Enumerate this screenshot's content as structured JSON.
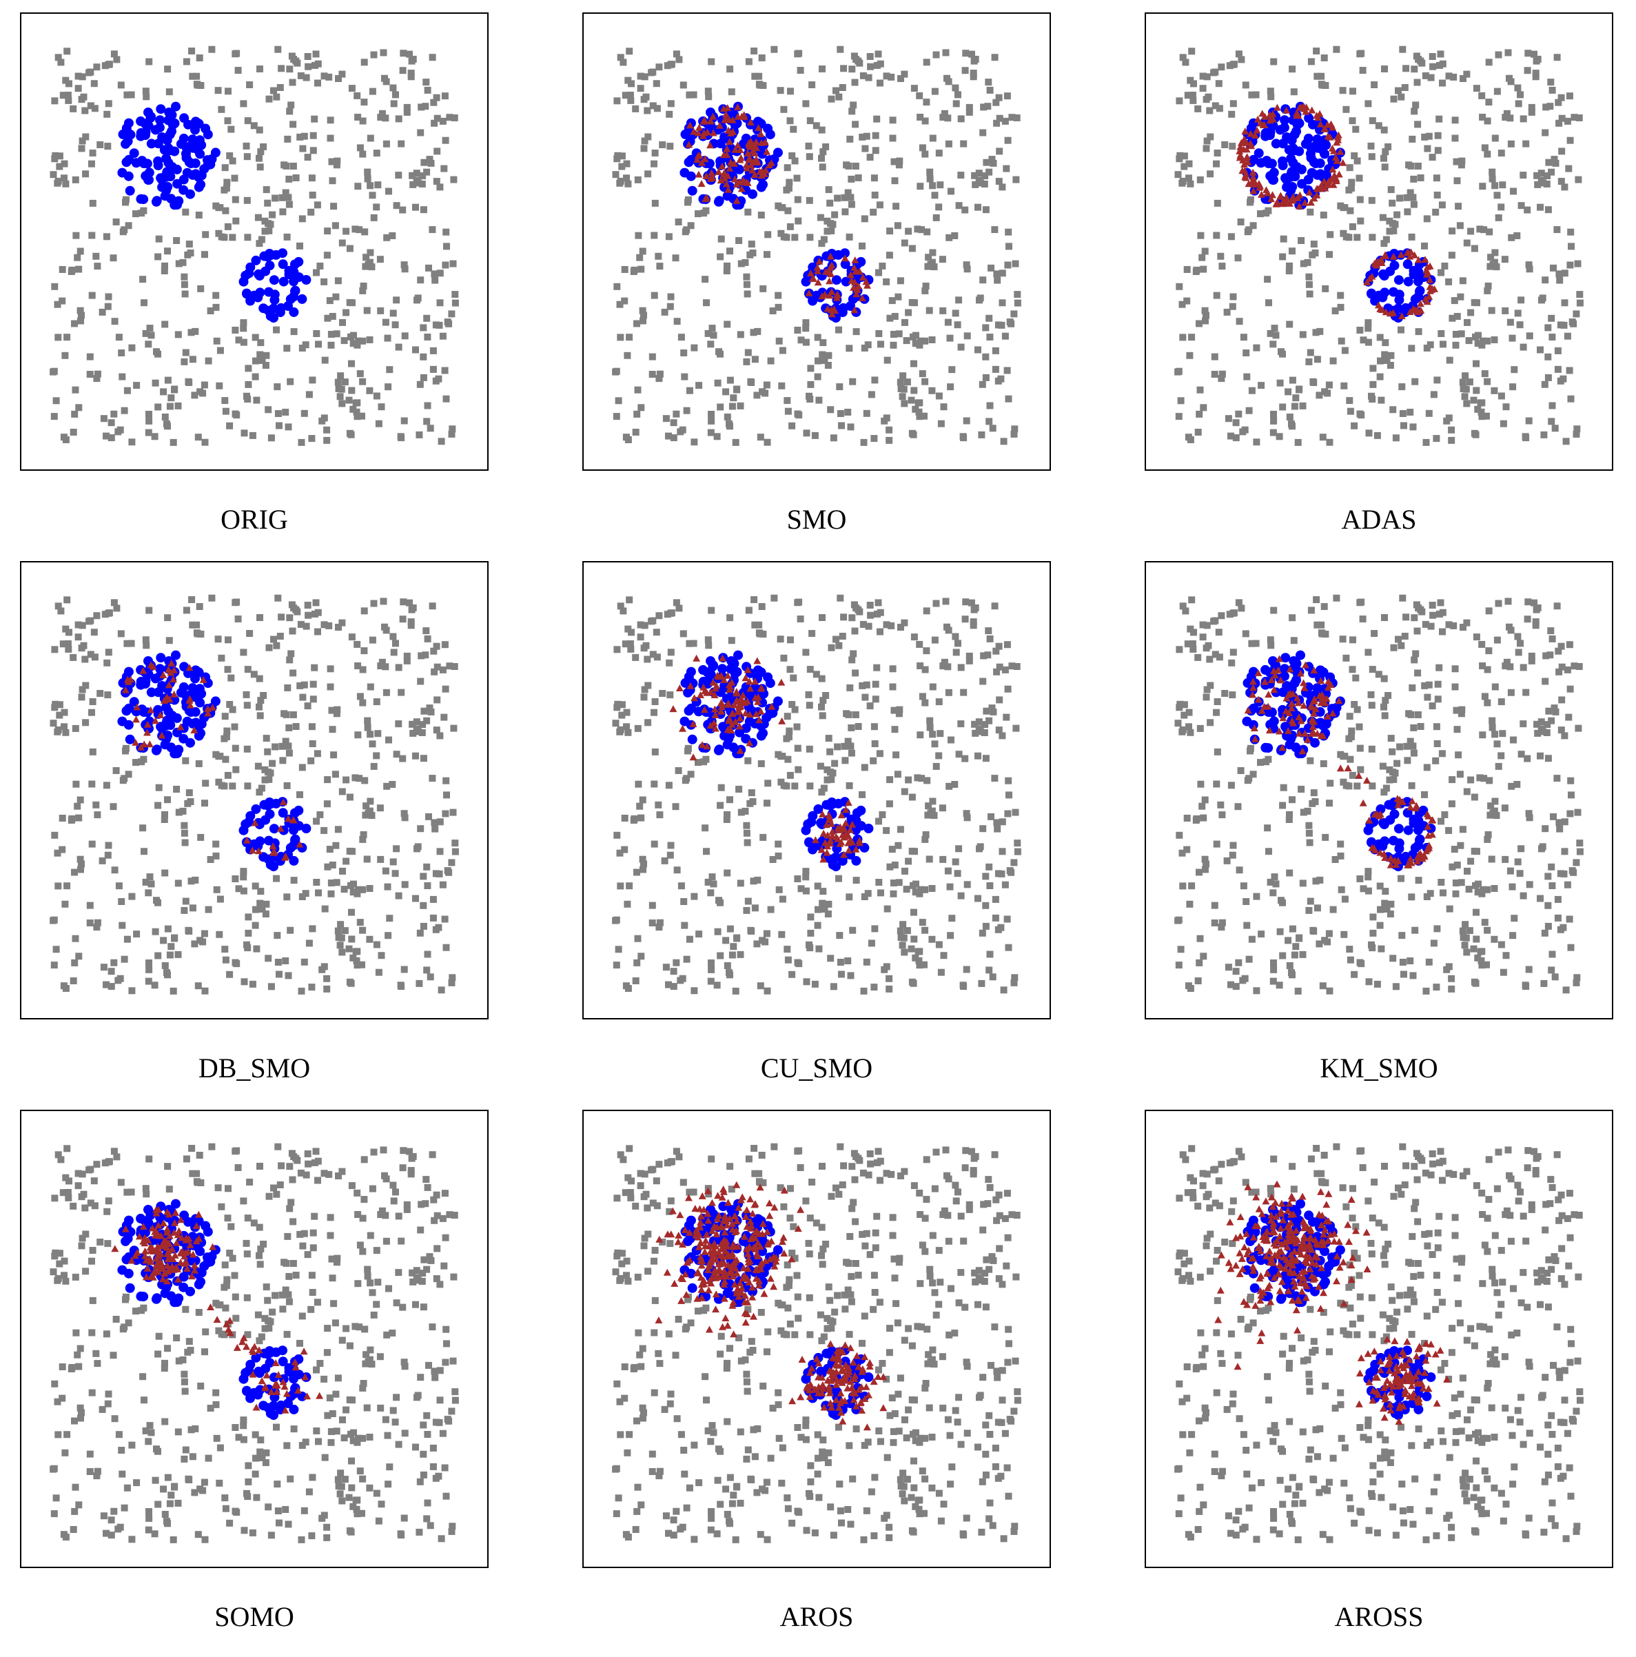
{
  "colors": {
    "majority": "#808080",
    "minority": "#0000ff",
    "synthetic": "#a52a2a",
    "frame": "#000000"
  },
  "chart_data": {
    "type": "scatter",
    "layout": "3x3 grid of scatter plots, no axes, no ticks",
    "x_range": [
      0,
      1
    ],
    "y_range": [
      0,
      1
    ],
    "markers": {
      "majority": "gray squares",
      "minority": "blue circles",
      "synthetic": "brown/red triangles and circles"
    },
    "minority_clusters": [
      {
        "center": [
          0.3,
          0.7
        ],
        "radius": 0.12
      },
      {
        "center": [
          0.55,
          0.4
        ],
        "radius": 0.08
      }
    ],
    "panels": [
      {
        "caption": "ORIG",
        "synthetic": "none"
      },
      {
        "caption": "SMO",
        "synthetic": "line-segment interpolation inside both clusters"
      },
      {
        "caption": "ADAS",
        "synthetic": "concentrated on cluster boundaries"
      },
      {
        "caption": "DB_SMO",
        "synthetic": "overlapping minority points, few triangles"
      },
      {
        "caption": "CU_SMO",
        "synthetic": "dense cores of both clusters"
      },
      {
        "caption": "KM_SMO",
        "synthetic": "cluster-based with few bridging points"
      },
      {
        "caption": "SOMO",
        "synthetic": "dense upper-left cluster and bridge between clusters"
      },
      {
        "caption": "AROS",
        "synthetic": "dense triangles covering both clusters"
      },
      {
        "caption": "AROSS",
        "synthetic": "dense triangles covering both clusters"
      }
    ]
  }
}
